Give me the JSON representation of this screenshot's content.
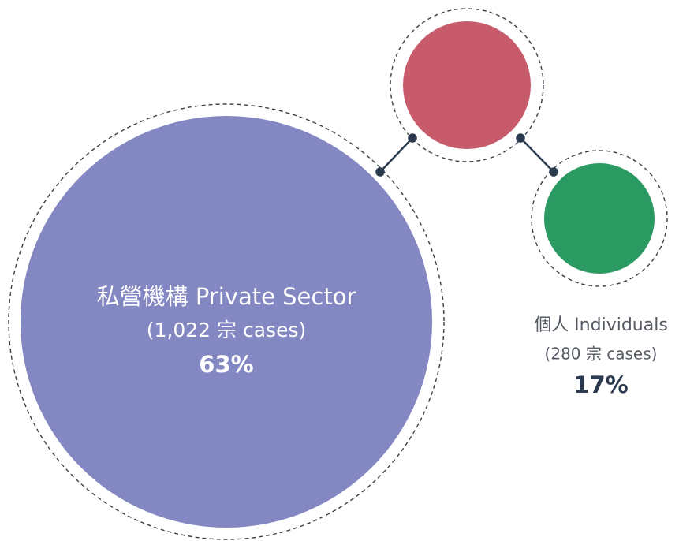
{
  "nodes": [
    {
      "label": "私營機構 Private Sector",
      "cases": "(1,022 宗 cases)",
      "share": "63%"
    },
    {
      "label": "個人 Individuals",
      "cases": "(280 宗 cases)",
      "share": "17%"
    }
  ]
}
